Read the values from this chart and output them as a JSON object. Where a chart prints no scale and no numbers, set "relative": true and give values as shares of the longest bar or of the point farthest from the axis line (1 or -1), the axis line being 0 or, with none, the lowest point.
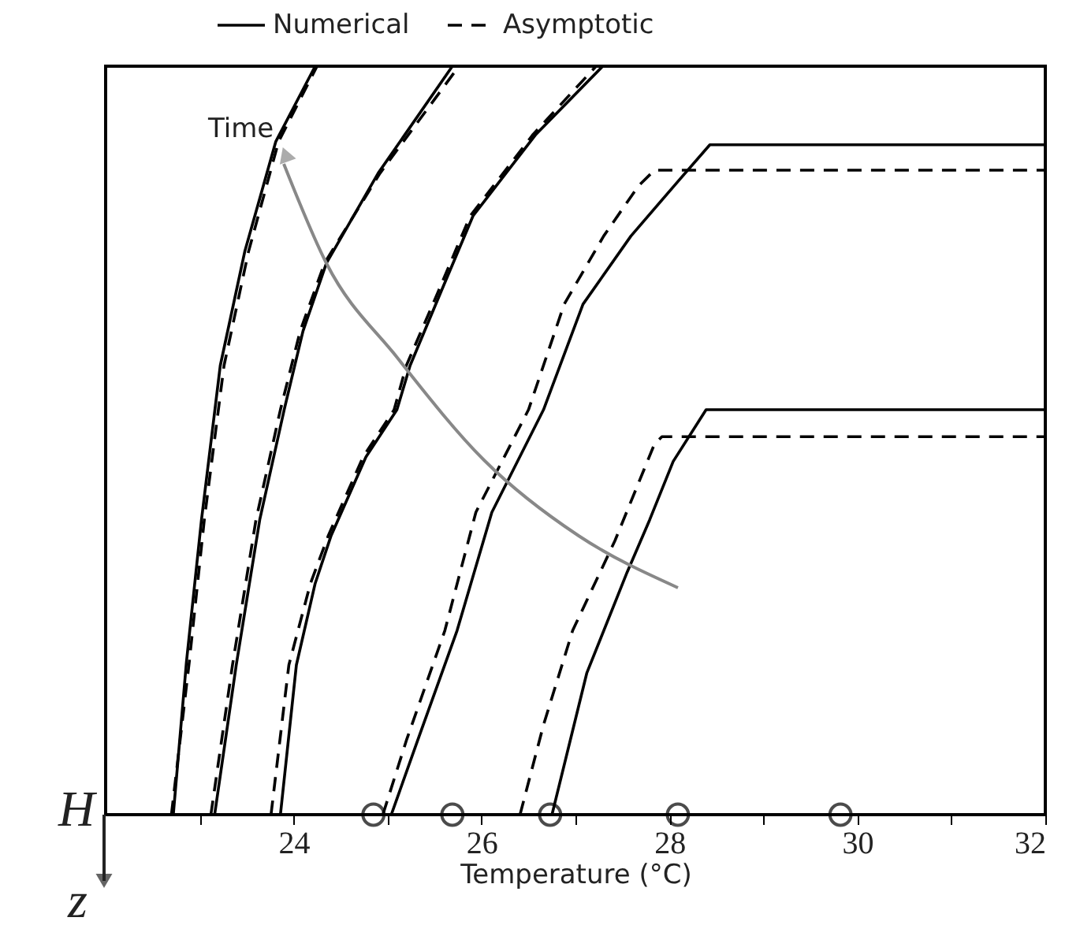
{
  "chart_data": {
    "type": "line",
    "xlabel": "Temperature (°C)",
    "relative": true,
    "xlim": [
      22,
      32
    ],
    "xticks": [
      {
        "value": 23,
        "label": null
      },
      24,
      {
        "value": 25,
        "label": null
      },
      26,
      {
        "value": 27,
        "label": null
      },
      28,
      {
        "value": 29,
        "label": null
      },
      30,
      {
        "value": 31,
        "label": null
      },
      32
    ],
    "legend": "top",
    "grid": false,
    "annotations": [
      "Time",
      "H",
      "z"
    ],
    "series": [
      {
        "name": "Numerical",
        "color": "#000000",
        "line_style": "solid",
        "x": [
          22.72,
          22.86,
          23.02,
          23.22,
          23.48,
          23.81,
          24.23
        ],
        "values": [
          0,
          0.204,
          0.394,
          0.6,
          0.752,
          0.899,
          1
        ]
      },
      {
        "name": "Asymptotic",
        "color": "#000000",
        "line_style": "dashed",
        "x": [
          22.7,
          22.89,
          23.05,
          23.26,
          23.52,
          23.84,
          24.25
        ],
        "values": [
          0,
          0.204,
          0.394,
          0.6,
          0.752,
          0.899,
          1
        ]
      },
      {
        "color": "#000000",
        "line_style": "solid",
        "x": [
          23.16,
          23.39,
          23.64,
          23.9,
          24.1,
          24.35,
          24.9,
          25.69
        ],
        "values": [
          0,
          0.2,
          0.394,
          0.541,
          0.646,
          0.737,
          0.857,
          1
        ]
      },
      {
        "color": "#000000",
        "line_style": "dashed",
        "x": [
          23.12,
          23.35,
          23.6,
          23.86,
          24.07,
          24.33,
          24.92,
          25.76
        ],
        "values": [
          0,
          0.2,
          0.394,
          0.541,
          0.646,
          0.737,
          0.857,
          1
        ]
      },
      {
        "color": "#000000",
        "line_style": "solid",
        "x": [
          23.86,
          24.03,
          24.23,
          24.4,
          24.77,
          25.1,
          25.24,
          25.57,
          25.91,
          26.58,
          27.29
        ],
        "values": [
          0,
          0.2,
          0.309,
          0.373,
          0.478,
          0.541,
          0.6,
          0.699,
          0.8,
          0.909,
          1
        ]
      },
      {
        "color": "#000000",
        "line_style": "dashed",
        "x": [
          23.76,
          23.95,
          24.18,
          24.37,
          24.74,
          25.07,
          25.2,
          25.54,
          25.88,
          26.55,
          27.22
        ],
        "values": [
          0,
          0.2,
          0.309,
          0.373,
          0.478,
          0.541,
          0.6,
          0.699,
          0.8,
          0.909,
          1
        ]
      },
      {
        "color": "#000000",
        "line_style": "solid",
        "x": [
          25.04,
          25.32,
          25.74,
          26.11,
          26.66,
          27.08,
          27.59,
          28.09,
          28.43,
          32
        ],
        "values": [
          0,
          0.099,
          0.246,
          0.404,
          0.541,
          0.682,
          0.773,
          0.846,
          0.895,
          0.895
        ]
      },
      {
        "color": "#000000",
        "line_style": "dashed",
        "x": [
          24.95,
          25.2,
          25.61,
          25.94,
          26.5,
          26.88,
          27.3,
          27.67,
          27.84,
          32
        ],
        "values": [
          0,
          0.099,
          0.246,
          0.404,
          0.541,
          0.682,
          0.773,
          0.84,
          0.861,
          0.861
        ]
      },
      {
        "color": "#000000",
        "line_style": "solid",
        "x": [
          26.75,
          27.12,
          27.55,
          27.79,
          28.04,
          28.39,
          32
        ],
        "values": [
          0,
          0.189,
          0.324,
          0.394,
          0.472,
          0.541,
          0.541
        ]
      },
      {
        "color": "#000000",
        "line_style": "dashed",
        "x": [
          26.41,
          26.66,
          26.97,
          27.42,
          27.84,
          27.92,
          32
        ],
        "values": [
          0,
          0.12,
          0.246,
          0.366,
          0.495,
          0.505,
          0.505
        ]
      },
      {
        "type": "scatter",
        "marker": "circle",
        "color": "#000000",
        "x": [
          24.85,
          25.69,
          26.73,
          28.09,
          29.82
        ],
        "values": [
          0,
          0,
          0,
          0,
          0
        ]
      }
    ]
  }
}
